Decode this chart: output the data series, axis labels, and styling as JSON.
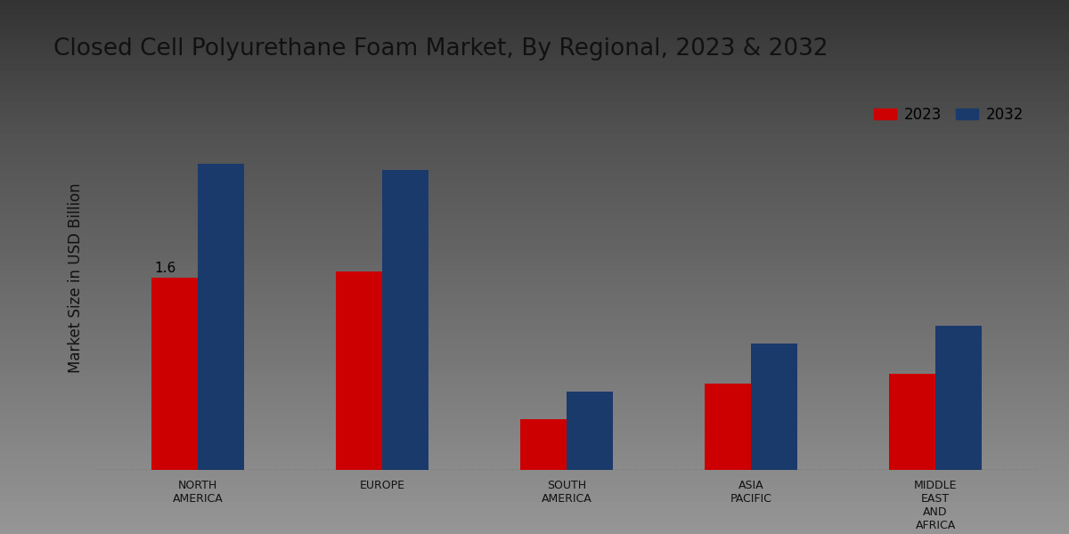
{
  "title": "Closed Cell Polyurethane Foam Market, By Regional, 2023 & 2032",
  "ylabel": "Market Size in USD Billion",
  "categories": [
    "NORTH\nAMERICA",
    "EUROPE",
    "SOUTH\nAMERICA",
    "ASIA\nPACIFIC",
    "MIDDLE\nEAST\nAND\nAFRICA"
  ],
  "values_2023": [
    1.6,
    1.65,
    0.42,
    0.72,
    0.8
  ],
  "values_2032": [
    2.55,
    2.5,
    0.65,
    1.05,
    1.2
  ],
  "color_2023": "#cc0000",
  "color_2032": "#1a3a6b",
  "bar_width": 0.25,
  "annotation_label": "1.6",
  "background_top": "#f0f0f0",
  "background_bottom": "#d0d0d0",
  "title_fontsize": 19,
  "axis_label_fontsize": 12,
  "tick_fontsize": 9,
  "legend_fontsize": 12,
  "ylim": [
    0,
    3.2
  ],
  "bottom_bar_color": "#cc0000",
  "bottom_bar_height": 0.04
}
